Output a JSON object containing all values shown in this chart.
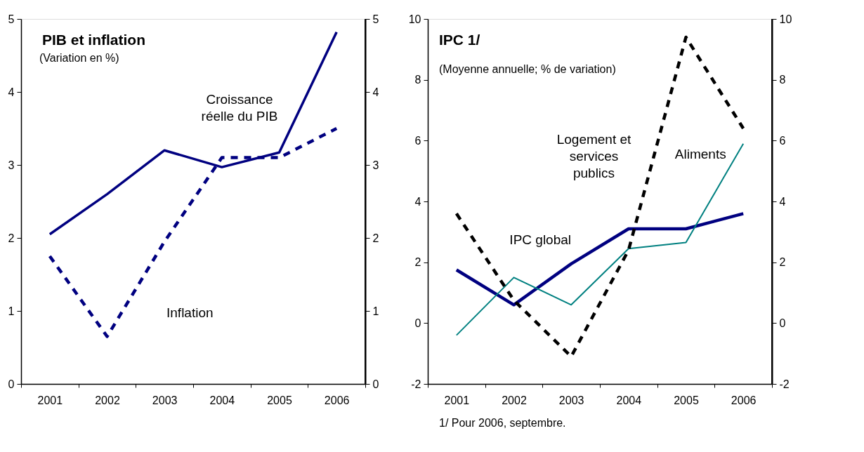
{
  "chart_data": [
    {
      "type": "line",
      "title": "PIB et inflation",
      "subtitle": "(Variation en %)",
      "categories": [
        "2001",
        "2002",
        "2003",
        "2004",
        "2005",
        "2006"
      ],
      "series": [
        {
          "name": "Croissance\nréelle du PIB",
          "color": "#000080",
          "line_style": "solid",
          "values": [
            2.05,
            2.6,
            3.2,
            2.97,
            3.17,
            4.82
          ]
        },
        {
          "name": "Inflation",
          "color": "#000080",
          "line_style": "dashed",
          "values": [
            1.75,
            0.65,
            1.95,
            3.1,
            3.1,
            3.5
          ]
        }
      ],
      "ylim": [
        0,
        5
      ],
      "yticks": [
        0,
        1,
        2,
        3,
        4,
        5
      ],
      "y2lim": [
        0,
        5
      ],
      "y2ticks": [
        0,
        1,
        2,
        3,
        4,
        5
      ],
      "grid": false,
      "marker": "none"
    },
    {
      "type": "line",
      "title": "IPC 1/",
      "subtitle": "(Moyenne annuelle; % de variation)",
      "categories": [
        "2001",
        "2002",
        "2003",
        "2004",
        "2005",
        "2006"
      ],
      "series": [
        {
          "name": "IPC global",
          "color": "#000080",
          "line_style": "solid",
          "values": [
            1.75,
            0.6,
            1.95,
            3.1,
            3.1,
            3.6
          ]
        },
        {
          "name": "Aliments",
          "color": "#008080",
          "line_style": "solid",
          "values": [
            -0.4,
            1.5,
            0.6,
            2.45,
            2.65,
            5.9
          ]
        },
        {
          "name": "Logement et\nservices\npublics",
          "color": "#000000",
          "line_style": "dashed",
          "values": [
            3.6,
            0.75,
            -1.1,
            2.4,
            9.4,
            6.4
          ]
        }
      ],
      "ylim": [
        -2,
        10
      ],
      "yticks": [
        -2,
        0,
        2,
        4,
        6,
        8,
        10
      ],
      "y2lim": [
        -2,
        10
      ],
      "y2ticks": [
        -2,
        0,
        2,
        4,
        6,
        8,
        10
      ],
      "annotations": [
        "1/ Pour 2006, septembre."
      ],
      "grid": false,
      "marker": "none"
    }
  ]
}
